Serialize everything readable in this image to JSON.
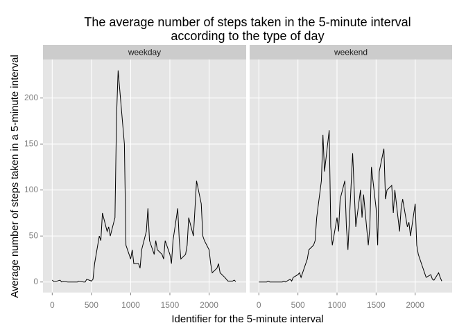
{
  "chart_data": {
    "type": "line",
    "title": [
      "The average number of steps taken in the 5-minute interval",
      "according to the type of day"
    ],
    "x_label": "Identifier for the 5-minute interval",
    "y_label": "Average number of steps taken in a 5-minute interval",
    "xlim": [
      -117.75,
      2472.75
    ],
    "ylim": [
      -11.5,
      241.9
    ],
    "xticks": [
      0,
      500,
      1000,
      1500,
      2000
    ],
    "yticks": [
      0,
      50,
      100,
      150,
      200
    ],
    "grid": true,
    "x": [
      0,
      20,
      40,
      100,
      120,
      140,
      200,
      220,
      240,
      300,
      320,
      340,
      400,
      420,
      440,
      500,
      520,
      540,
      600,
      620,
      640,
      700,
      720,
      740,
      800,
      820,
      840,
      900,
      920,
      940,
      1000,
      1020,
      1040,
      1100,
      1120,
      1140,
      1200,
      1220,
      1240,
      1300,
      1320,
      1340,
      1400,
      1420,
      1440,
      1500,
      1520,
      1540,
      1600,
      1620,
      1640,
      1700,
      1720,
      1740,
      1800,
      1820,
      1840,
      1900,
      1920,
      1940,
      2000,
      2020,
      2040,
      2100,
      2120,
      2140,
      2200,
      2220,
      2240,
      2300,
      2320,
      2340
    ],
    "series": [
      {
        "name": "weekday",
        "color": "#000000",
        "values": [
          2,
          0.5,
          0.4,
          2,
          0,
          0.5,
          0,
          0,
          0,
          0,
          0,
          1,
          0,
          0,
          3,
          1,
          3,
          20,
          50,
          45,
          75,
          55,
          60,
          50,
          70,
          180,
          230,
          170,
          150,
          40,
          25,
          35,
          20,
          20,
          15,
          35,
          55,
          80,
          45,
          30,
          45,
          35,
          30,
          25,
          45,
          30,
          20,
          45,
          80,
          45,
          25,
          30,
          40,
          70,
          50,
          80,
          110,
          85,
          50,
          45,
          35,
          20,
          10,
          15,
          20,
          10,
          5,
          3,
          1,
          1,
          2,
          0.5
        ]
      },
      {
        "name": "weekend",
        "color": "#000000",
        "values": [
          0,
          0,
          0,
          0,
          1,
          0,
          0,
          0,
          0,
          0,
          1,
          0,
          3,
          1,
          5,
          8,
          10,
          5,
          20,
          25,
          35,
          40,
          45,
          70,
          110,
          160,
          120,
          165,
          60,
          40,
          70,
          55,
          90,
          110,
          60,
          35,
          140,
          100,
          60,
          100,
          70,
          95,
          40,
          60,
          125,
          80,
          40,
          120,
          145,
          90,
          100,
          105,
          75,
          100,
          55,
          80,
          90,
          60,
          65,
          50,
          85,
          40,
          30,
          15,
          10,
          5,
          8,
          3,
          2,
          10,
          5,
          1
        ]
      }
    ]
  }
}
